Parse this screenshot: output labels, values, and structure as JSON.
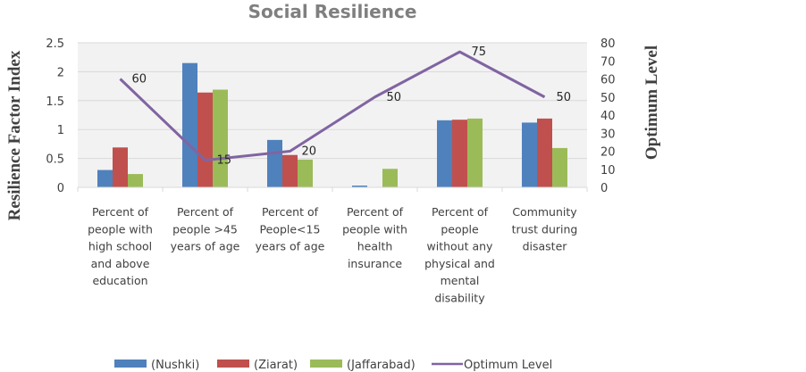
{
  "chart_data": {
    "type": "bar",
    "title": "Social Resilience",
    "ylabel": "Resilience Factor Index",
    "y2label": "Optimum Level",
    "ylim": [
      0,
      2.5
    ],
    "y2lim": [
      0,
      80
    ],
    "yticks": [
      "0",
      "0.5",
      "1",
      "1.5",
      "2",
      "2.5"
    ],
    "y2ticks": [
      "0",
      "10",
      "20",
      "30",
      "40",
      "50",
      "60",
      "70",
      "80"
    ],
    "grid": true,
    "legend_position": "bottom",
    "categories": [
      [
        "Percent of",
        "people with",
        "high school",
        "and above",
        "education"
      ],
      [
        "Percent of",
        "people >45",
        "years of age"
      ],
      [
        "Percent of",
        "People<15",
        "years of age"
      ],
      [
        "Percent of",
        "people with",
        "health",
        "insurance"
      ],
      [
        "Percent of",
        "people",
        "without any",
        "physical and",
        "mental",
        "disability"
      ],
      [
        "Community",
        "trust during",
        "disaster"
      ]
    ],
    "series": [
      {
        "name": "(Nushki)",
        "type": "bar",
        "axis": "left",
        "color": "#4F81BD",
        "values": [
          0.3,
          2.15,
          0.82,
          0.03,
          1.16,
          1.12
        ]
      },
      {
        "name": "(Ziarat)",
        "type": "bar",
        "axis": "left",
        "color": "#C0504D",
        "values": [
          0.69,
          1.64,
          0.56,
          0.0,
          1.17,
          1.19
        ]
      },
      {
        "name": "(Jaffarabad)",
        "type": "bar",
        "axis": "left",
        "color": "#9BBB59",
        "values": [
          0.23,
          1.69,
          0.48,
          0.32,
          1.19,
          0.68
        ]
      },
      {
        "name": "Optimum Level",
        "type": "line",
        "axis": "right",
        "color": "#8064A2",
        "values": [
          60,
          15,
          20,
          50,
          75,
          50
        ],
        "labels": [
          "60",
          "15",
          "20",
          "50",
          "75",
          "50"
        ]
      }
    ]
  }
}
